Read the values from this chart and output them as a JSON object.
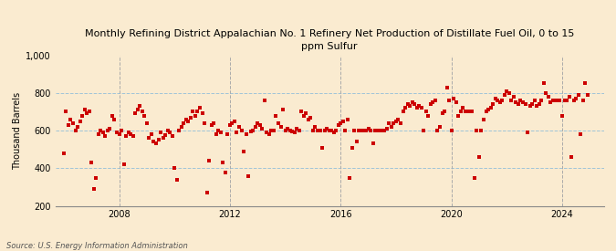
{
  "title": "Monthly Refining District Appalachian No. 1 Refinery Net Production of Distillate Fuel Oil, 0 to 15\nppm Sulfur",
  "ylabel": "Thousand Barrels",
  "source": "Source: U.S. Energy Information Administration",
  "ylim": [
    200,
    1000
  ],
  "yticks": [
    200,
    400,
    600,
    800,
    1000
  ],
  "ytick_labels": [
    "200",
    "400",
    "600",
    "800",
    "1,000"
  ],
  "background_color": "#faebd0",
  "plot_bg_color": "#faebd0",
  "grid_color": "#a0c4d8",
  "vgrid_color": "#aaaaaa",
  "dot_color": "#cc0000",
  "dot_size": 5,
  "data": [
    [
      2006.0,
      480
    ],
    [
      2006.083,
      700
    ],
    [
      2006.167,
      630
    ],
    [
      2006.25,
      660
    ],
    [
      2006.333,
      640
    ],
    [
      2006.417,
      600
    ],
    [
      2006.5,
      620
    ],
    [
      2006.583,
      650
    ],
    [
      2006.667,
      680
    ],
    [
      2006.75,
      710
    ],
    [
      2006.833,
      690
    ],
    [
      2006.917,
      700
    ],
    [
      2007.0,
      430
    ],
    [
      2007.083,
      290
    ],
    [
      2007.167,
      350
    ],
    [
      2007.25,
      580
    ],
    [
      2007.333,
      600
    ],
    [
      2007.417,
      590
    ],
    [
      2007.5,
      570
    ],
    [
      2007.583,
      600
    ],
    [
      2007.667,
      610
    ],
    [
      2007.75,
      680
    ],
    [
      2007.833,
      660
    ],
    [
      2007.917,
      590
    ],
    [
      2008.0,
      580
    ],
    [
      2008.083,
      600
    ],
    [
      2008.167,
      420
    ],
    [
      2008.25,
      570
    ],
    [
      2008.333,
      590
    ],
    [
      2008.417,
      580
    ],
    [
      2008.5,
      570
    ],
    [
      2008.583,
      690
    ],
    [
      2008.667,
      710
    ],
    [
      2008.75,
      730
    ],
    [
      2008.833,
      700
    ],
    [
      2008.917,
      680
    ],
    [
      2009.0,
      640
    ],
    [
      2009.083,
      560
    ],
    [
      2009.167,
      580
    ],
    [
      2009.25,
      540
    ],
    [
      2009.333,
      530
    ],
    [
      2009.417,
      550
    ],
    [
      2009.5,
      590
    ],
    [
      2009.583,
      560
    ],
    [
      2009.667,
      575
    ],
    [
      2009.75,
      600
    ],
    [
      2009.833,
      590
    ],
    [
      2009.917,
      570
    ],
    [
      2010.0,
      400
    ],
    [
      2010.083,
      340
    ],
    [
      2010.167,
      600
    ],
    [
      2010.25,
      620
    ],
    [
      2010.333,
      640
    ],
    [
      2010.417,
      660
    ],
    [
      2010.5,
      650
    ],
    [
      2010.583,
      670
    ],
    [
      2010.667,
      700
    ],
    [
      2010.75,
      680
    ],
    [
      2010.833,
      700
    ],
    [
      2010.917,
      720
    ],
    [
      2011.0,
      690
    ],
    [
      2011.083,
      640
    ],
    [
      2011.167,
      270
    ],
    [
      2011.25,
      440
    ],
    [
      2011.333,
      630
    ],
    [
      2011.417,
      640
    ],
    [
      2011.5,
      580
    ],
    [
      2011.583,
      600
    ],
    [
      2011.667,
      590
    ],
    [
      2011.75,
      430
    ],
    [
      2011.833,
      375
    ],
    [
      2011.917,
      580
    ],
    [
      2012.0,
      630
    ],
    [
      2012.083,
      640
    ],
    [
      2012.167,
      650
    ],
    [
      2012.25,
      590
    ],
    [
      2012.333,
      620
    ],
    [
      2012.417,
      600
    ],
    [
      2012.5,
      490
    ],
    [
      2012.583,
      580
    ],
    [
      2012.667,
      360
    ],
    [
      2012.75,
      595
    ],
    [
      2012.833,
      600
    ],
    [
      2012.917,
      620
    ],
    [
      2013.0,
      640
    ],
    [
      2013.083,
      630
    ],
    [
      2013.167,
      610
    ],
    [
      2013.25,
      760
    ],
    [
      2013.333,
      590
    ],
    [
      2013.417,
      580
    ],
    [
      2013.5,
      600
    ],
    [
      2013.583,
      600
    ],
    [
      2013.667,
      680
    ],
    [
      2013.75,
      640
    ],
    [
      2013.833,
      620
    ],
    [
      2013.917,
      710
    ],
    [
      2014.0,
      600
    ],
    [
      2014.083,
      610
    ],
    [
      2014.167,
      600
    ],
    [
      2014.25,
      595
    ],
    [
      2014.333,
      590
    ],
    [
      2014.417,
      610
    ],
    [
      2014.5,
      600
    ],
    [
      2014.583,
      700
    ],
    [
      2014.667,
      680
    ],
    [
      2014.75,
      690
    ],
    [
      2014.833,
      660
    ],
    [
      2014.917,
      670
    ],
    [
      2015.0,
      600
    ],
    [
      2015.083,
      620
    ],
    [
      2015.167,
      600
    ],
    [
      2015.25,
      600
    ],
    [
      2015.333,
      510
    ],
    [
      2015.417,
      600
    ],
    [
      2015.5,
      610
    ],
    [
      2015.583,
      600
    ],
    [
      2015.667,
      600
    ],
    [
      2015.75,
      590
    ],
    [
      2015.833,
      600
    ],
    [
      2015.917,
      630
    ],
    [
      2016.0,
      640
    ],
    [
      2016.083,
      650
    ],
    [
      2016.167,
      600
    ],
    [
      2016.25,
      660
    ],
    [
      2016.333,
      350
    ],
    [
      2016.417,
      510
    ],
    [
      2016.5,
      600
    ],
    [
      2016.583,
      540
    ],
    [
      2016.667,
      600
    ],
    [
      2016.75,
      600
    ],
    [
      2016.833,
      600
    ],
    [
      2016.917,
      600
    ],
    [
      2017.0,
      610
    ],
    [
      2017.083,
      600
    ],
    [
      2017.167,
      530
    ],
    [
      2017.25,
      600
    ],
    [
      2017.333,
      600
    ],
    [
      2017.417,
      600
    ],
    [
      2017.5,
      600
    ],
    [
      2017.583,
      600
    ],
    [
      2017.667,
      610
    ],
    [
      2017.75,
      640
    ],
    [
      2017.833,
      620
    ],
    [
      2017.917,
      640
    ],
    [
      2018.0,
      650
    ],
    [
      2018.083,
      660
    ],
    [
      2018.167,
      640
    ],
    [
      2018.25,
      700
    ],
    [
      2018.333,
      720
    ],
    [
      2018.417,
      740
    ],
    [
      2018.5,
      730
    ],
    [
      2018.583,
      750
    ],
    [
      2018.667,
      740
    ],
    [
      2018.75,
      720
    ],
    [
      2018.833,
      730
    ],
    [
      2018.917,
      720
    ],
    [
      2019.0,
      600
    ],
    [
      2019.083,
      700
    ],
    [
      2019.167,
      680
    ],
    [
      2019.25,
      740
    ],
    [
      2019.333,
      750
    ],
    [
      2019.417,
      760
    ],
    [
      2019.5,
      600
    ],
    [
      2019.583,
      620
    ],
    [
      2019.667,
      690
    ],
    [
      2019.75,
      700
    ],
    [
      2019.833,
      830
    ],
    [
      2019.917,
      760
    ],
    [
      2020.0,
      600
    ],
    [
      2020.083,
      770
    ],
    [
      2020.167,
      750
    ],
    [
      2020.25,
      680
    ],
    [
      2020.333,
      700
    ],
    [
      2020.417,
      720
    ],
    [
      2020.5,
      700
    ],
    [
      2020.583,
      700
    ],
    [
      2020.667,
      700
    ],
    [
      2020.75,
      700
    ],
    [
      2020.833,
      350
    ],
    [
      2020.917,
      600
    ],
    [
      2021.0,
      460
    ],
    [
      2021.083,
      600
    ],
    [
      2021.167,
      660
    ],
    [
      2021.25,
      700
    ],
    [
      2021.333,
      710
    ],
    [
      2021.417,
      720
    ],
    [
      2021.5,
      740
    ],
    [
      2021.583,
      770
    ],
    [
      2021.667,
      760
    ],
    [
      2021.75,
      750
    ],
    [
      2021.833,
      760
    ],
    [
      2021.917,
      790
    ],
    [
      2022.0,
      810
    ],
    [
      2022.083,
      800
    ],
    [
      2022.167,
      760
    ],
    [
      2022.25,
      780
    ],
    [
      2022.333,
      750
    ],
    [
      2022.417,
      740
    ],
    [
      2022.5,
      760
    ],
    [
      2022.583,
      750
    ],
    [
      2022.667,
      740
    ],
    [
      2022.75,
      590
    ],
    [
      2022.833,
      730
    ],
    [
      2022.917,
      740
    ],
    [
      2023.0,
      760
    ],
    [
      2023.083,
      730
    ],
    [
      2023.167,
      740
    ],
    [
      2023.25,
      760
    ],
    [
      2023.333,
      850
    ],
    [
      2023.417,
      800
    ],
    [
      2023.5,
      780
    ],
    [
      2023.583,
      750
    ],
    [
      2023.667,
      760
    ],
    [
      2023.75,
      760
    ],
    [
      2023.833,
      760
    ],
    [
      2023.917,
      760
    ],
    [
      2024.0,
      680
    ],
    [
      2024.083,
      760
    ],
    [
      2024.167,
      760
    ],
    [
      2024.25,
      780
    ],
    [
      2024.333,
      460
    ],
    [
      2024.417,
      760
    ],
    [
      2024.5,
      770
    ],
    [
      2024.583,
      790
    ],
    [
      2024.667,
      580
    ],
    [
      2024.75,
      760
    ],
    [
      2024.833,
      850
    ],
    [
      2024.917,
      790
    ]
  ],
  "xticks": [
    2008,
    2012,
    2016,
    2020,
    2024
  ],
  "xlim": [
    2005.7,
    2025.5
  ]
}
